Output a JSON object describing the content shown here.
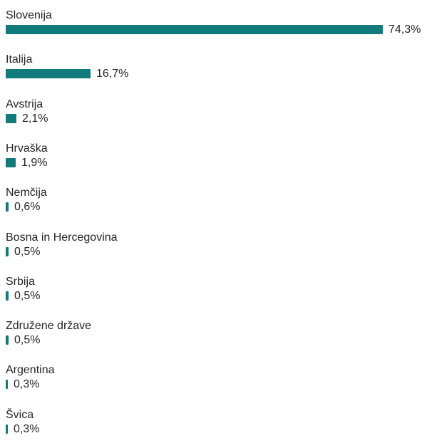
{
  "chart_data": {
    "type": "bar",
    "orientation": "horizontal",
    "categories": [
      "Slovenija",
      "Italija",
      "Avstrija",
      "Hrvaška",
      "Nemčija",
      "Bosna in Hercegovina",
      "Srbija",
      "Združene države",
      "Argentina",
      "Švica"
    ],
    "values": [
      74.3,
      16.7,
      2.1,
      1.9,
      0.6,
      0.5,
      0.5,
      0.5,
      0.3,
      0.3
    ],
    "value_labels": [
      "74,3%",
      "16,7%",
      "2,1%",
      "1,9%",
      "0,6%",
      "0,5%",
      "0,5%",
      "0,5%",
      "0,3%",
      "0,3%"
    ],
    "unit": "%",
    "title": "",
    "xlabel": "",
    "ylabel": "",
    "bar_color": "#117A7A",
    "grid": false,
    "legend": "none"
  }
}
